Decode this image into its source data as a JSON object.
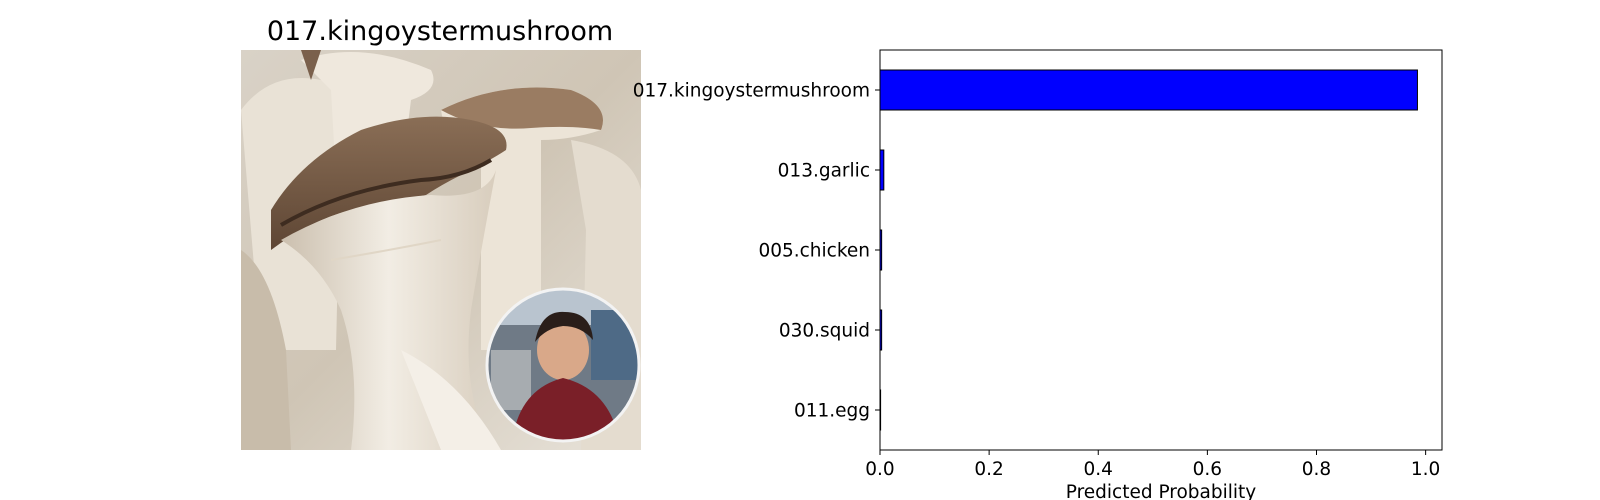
{
  "image_panel": {
    "title": "017.kingoystermushroom",
    "photo": "king-oyster-mushroom-photo",
    "inset": "circular-portrait-inset"
  },
  "chart_data": {
    "type": "bar",
    "orientation": "horizontal",
    "categories": [
      "017.kingoystermushroom",
      "013.garlic",
      "005.chicken",
      "030.squid",
      "011.egg"
    ],
    "values": [
      0.985,
      0.007,
      0.003,
      0.003,
      0.001
    ],
    "xlabel": "Predicted Probability",
    "ylabel": "",
    "xlim": [
      0.0,
      1.03
    ],
    "xticks": [
      "0.0",
      "0.2",
      "0.4",
      "0.6",
      "0.8",
      "1.0"
    ],
    "grid": false,
    "bar_color": "#0000ff",
    "edge_color": "#000000"
  }
}
